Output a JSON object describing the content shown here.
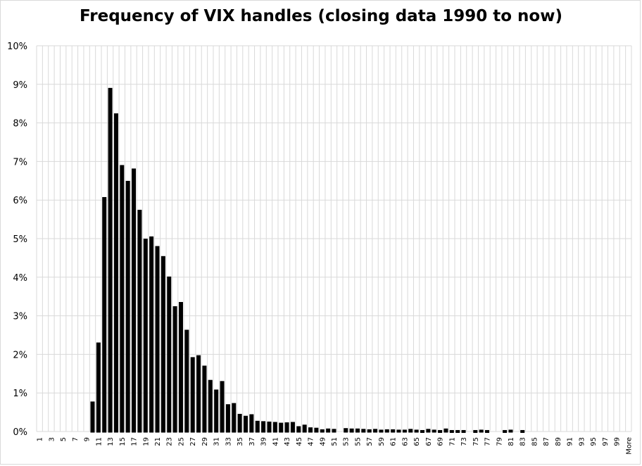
{
  "chart_data": {
    "type": "bar",
    "title": "Frequency of VIX handles (closing data 1990 to now)",
    "xlabel": "",
    "ylabel": "",
    "ylim": [
      0,
      10
    ],
    "y_unit": "%",
    "yticks": [
      "0%",
      "1%",
      "2%",
      "3%",
      "4%",
      "5%",
      "6%",
      "7%",
      "8%",
      "9%",
      "10%"
    ],
    "grid": true,
    "legend": "none",
    "colors": {
      "bar_fill": "#ffffff",
      "bar_edge": "#000000",
      "grid": "#d9d9d9"
    },
    "categories": [
      "1",
      "2",
      "3",
      "4",
      "5",
      "6",
      "7",
      "8",
      "9",
      "10",
      "11",
      "12",
      "13",
      "14",
      "15",
      "16",
      "17",
      "18",
      "19",
      "20",
      "21",
      "22",
      "23",
      "24",
      "25",
      "26",
      "27",
      "28",
      "29",
      "30",
      "31",
      "32",
      "33",
      "34",
      "35",
      "36",
      "37",
      "38",
      "39",
      "40",
      "41",
      "42",
      "43",
      "44",
      "45",
      "46",
      "47",
      "48",
      "49",
      "50",
      "51",
      "52",
      "53",
      "54",
      "55",
      "56",
      "57",
      "58",
      "59",
      "60",
      "61",
      "62",
      "63",
      "64",
      "65",
      "66",
      "67",
      "68",
      "69",
      "70",
      "71",
      "72",
      "73",
      "74",
      "75",
      "76",
      "77",
      "78",
      "79",
      "80",
      "81",
      "82",
      "83",
      "84",
      "85",
      "86",
      "87",
      "88",
      "89",
      "90",
      "91",
      "92",
      "93",
      "94",
      "95",
      "96",
      "97",
      "98",
      "99",
      "100",
      "More"
    ],
    "xticklabels": [
      "1",
      "",
      "3",
      "",
      "5",
      "",
      "7",
      "",
      "9",
      "",
      "11",
      "",
      "13",
      "",
      "15",
      "",
      "17",
      "",
      "19",
      "",
      "21",
      "",
      "23",
      "",
      "25",
      "",
      "27",
      "",
      "29",
      "",
      "31",
      "",
      "33",
      "",
      "35",
      "",
      "37",
      "",
      "39",
      "",
      "41",
      "",
      "43",
      "",
      "45",
      "",
      "47",
      "",
      "49",
      "",
      "51",
      "",
      "53",
      "",
      "55",
      "",
      "57",
      "",
      "59",
      "",
      "61",
      "",
      "63",
      "",
      "65",
      "",
      "67",
      "",
      "69",
      "",
      "71",
      "",
      "73",
      "",
      "75",
      "",
      "77",
      "",
      "79",
      "",
      "81",
      "",
      "83",
      "",
      "85",
      "",
      "87",
      "",
      "89",
      "",
      "91",
      "",
      "93",
      "",
      "95",
      "",
      "97",
      "",
      "99",
      "",
      "More"
    ],
    "values": [
      0,
      0,
      0,
      0,
      0,
      0,
      0,
      0,
      0,
      0.75,
      2.28,
      6.05,
      8.88,
      8.22,
      6.88,
      6.47,
      6.79,
      5.72,
      4.97,
      5.03,
      4.78,
      4.52,
      3.99,
      3.22,
      3.33,
      2.61,
      1.9,
      1.95,
      1.68,
      1.31,
      1.06,
      1.28,
      0.68,
      0.71,
      0.43,
      0.38,
      0.42,
      0.25,
      0.24,
      0.23,
      0.22,
      0.2,
      0.21,
      0.22,
      0.11,
      0.15,
      0.08,
      0.07,
      0.03,
      0.05,
      0.04,
      0,
      0.06,
      0.05,
      0.05,
      0.04,
      0.03,
      0.04,
      0.02,
      0.03,
      0.03,
      0.02,
      0.02,
      0.04,
      0.02,
      0.01,
      0.04,
      0.02,
      0.01,
      0.05,
      0.01,
      0.01,
      0.01,
      0,
      0.01,
      0.02,
      0.01,
      0,
      0,
      0.01,
      0.02,
      0,
      0.01,
      0,
      0,
      0,
      0,
      0,
      0,
      0,
      0,
      0,
      0,
      0,
      0,
      0,
      0,
      0,
      0,
      0,
      0
    ]
  }
}
